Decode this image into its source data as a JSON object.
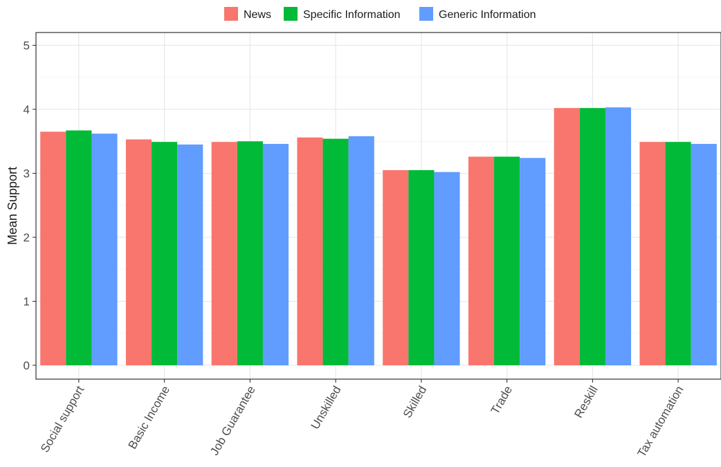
{
  "chart_data": {
    "type": "bar",
    "title": "",
    "xlabel": "",
    "ylabel": "Mean Support",
    "ylim": [
      0,
      5.2
    ],
    "yticks": [
      0,
      1,
      2,
      3,
      4,
      5
    ],
    "grid": true,
    "legend_position": "top",
    "categories": [
      "Social support",
      "Basic Income",
      "Job Guarantee",
      "Unskilled",
      "Skilled",
      "Trade",
      "Reskill",
      "Tax automation"
    ],
    "series": [
      {
        "name": "News",
        "color": "#F8766D",
        "values": [
          3.65,
          3.53,
          3.49,
          3.56,
          3.05,
          3.26,
          4.02,
          3.49
        ]
      },
      {
        "name": "Specific Information",
        "color": "#00BA38",
        "values": [
          3.67,
          3.49,
          3.5,
          3.54,
          3.05,
          3.26,
          4.02,
          3.49
        ]
      },
      {
        "name": "Generic Information",
        "color": "#619CFF",
        "values": [
          3.62,
          3.45,
          3.46,
          3.58,
          3.02,
          3.24,
          4.03,
          3.46
        ]
      }
    ]
  }
}
